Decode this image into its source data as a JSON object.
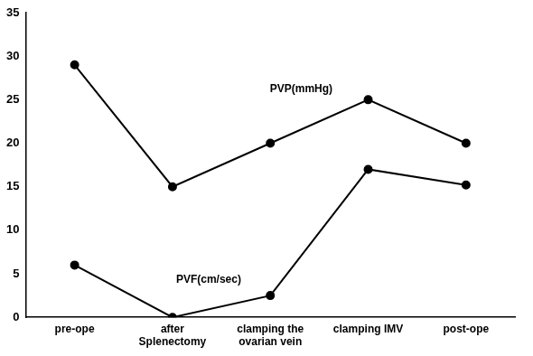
{
  "chart_data": {
    "type": "line",
    "categories": [
      "pre-ope",
      "after Splenectomy",
      "clamping the ovarian vein",
      "clamping IMV",
      "post-ope"
    ],
    "series": [
      {
        "name": "PVP(mmHg)",
        "color": "#000000",
        "marker": "circle",
        "line_style": "solid",
        "values": [
          29,
          15,
          20,
          25,
          20
        ]
      },
      {
        "name": "PVF(cm/sec)",
        "color": "#000000",
        "marker": "circle",
        "line_style": "solid",
        "values": [
          6,
          0,
          2.5,
          17,
          15.2
        ]
      }
    ],
    "ylim": [
      0,
      35
    ],
    "yticks": [
      0,
      5,
      10,
      15,
      20,
      25,
      30,
      35
    ],
    "grid": false
  }
}
